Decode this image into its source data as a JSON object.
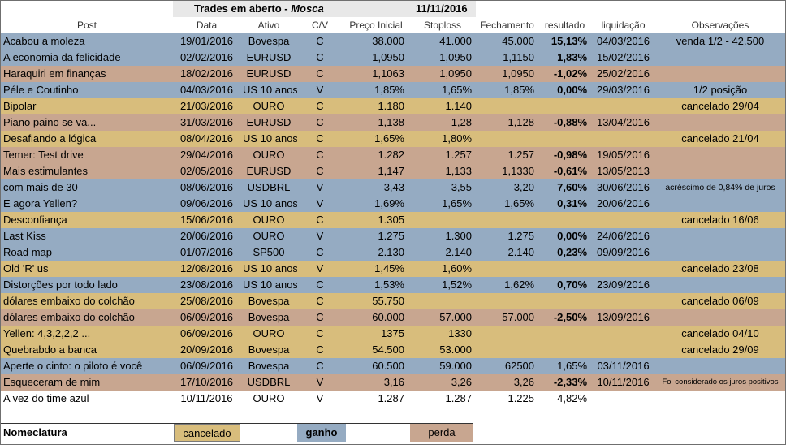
{
  "title": {
    "text": "Trades em aberto - ",
    "strategy": "Mosca",
    "date": "11/11/2016"
  },
  "headers": {
    "post": "Post",
    "data": "Data",
    "ativo": "Ativo",
    "cv": "C/V",
    "preco": "Preço Inicial",
    "stop": "Stoploss",
    "fech": "Fechamento",
    "res": "resultado",
    "liq": "liquidação",
    "obs": "Observações"
  },
  "colors": {
    "ganho": "#95abc2",
    "cancelado": "#d8bd7c",
    "perda": "#c8a690"
  },
  "rows": [
    {
      "status": "blue",
      "post": "Acabou a moleza",
      "data": "19/01/2016",
      "ativo": "Bovespa",
      "cv": "C",
      "preco": "38.000",
      "stop": "41.000",
      "fech": "45.000",
      "res": "15,13%",
      "liq": "04/03/2016",
      "obs": "venda 1/2 - 42.500"
    },
    {
      "status": "blue",
      "post": "A economia da felicidade",
      "data": "02/02/2016",
      "ativo": "EURUSD",
      "cv": "C",
      "preco": "1,0950",
      "stop": "1,0950",
      "fech": "1,1150",
      "res": "1,83%",
      "liq": "15/02/2016",
      "obs": ""
    },
    {
      "status": "pink",
      "post": "Haraquiri em finanças",
      "data": "18/02/2016",
      "ativo": "EURUSD",
      "cv": "C",
      "preco": "1,1063",
      "stop": "1,0950",
      "fech": "1,0950",
      "res": "-1,02%",
      "liq": "25/02/2016",
      "obs": ""
    },
    {
      "status": "blue",
      "post": "Péle e Coutinho",
      "data": "04/03/2016",
      "ativo": "US 10 anos",
      "cv": "V",
      "preco": "1,85%",
      "stop": "1,65%",
      "fech": "1,85%",
      "res": "0,00%",
      "liq": "29/03/2016",
      "obs": "1/2 posição"
    },
    {
      "status": "tan",
      "post": "Bipolar",
      "data": "21/03/2016",
      "ativo": "OURO",
      "cv": "C",
      "preco": "1.180",
      "stop": "1.140",
      "fech": "",
      "res": "",
      "liq": "",
      "obs": "cancelado 29/04"
    },
    {
      "status": "pink",
      "post": "Piano paino se va...",
      "data": "31/03/2016",
      "ativo": "EURUSD",
      "cv": "C",
      "preco": "1,138",
      "stop": "1,28",
      "fech": "1,128",
      "res": "-0,88%",
      "liq": "13/04/2016",
      "obs": ""
    },
    {
      "status": "tan",
      "post": "Desafiando a lógica",
      "data": "08/04/2016",
      "ativo": "US 10 anos",
      "cv": "C",
      "preco": "1,65%",
      "stop": "1,80%",
      "fech": "",
      "res": "",
      "liq": "",
      "obs": "cancelado 21/04"
    },
    {
      "status": "pink",
      "post": "Temer: Test drive",
      "data": "29/04/2016",
      "ativo": "OURO",
      "cv": "C",
      "preco": "1.282",
      "stop": "1.257",
      "fech": "1.257",
      "res": "-0,98%",
      "liq": "19/05/2016",
      "obs": ""
    },
    {
      "status": "pink",
      "post": "Mais estimulantes",
      "data": "02/05/2016",
      "ativo": "EURUSD",
      "cv": "C",
      "preco": "1,147",
      "stop": "1,133",
      "fech": "1,1330",
      "res": "-0,61%",
      "liq": "13/05/2013",
      "obs": ""
    },
    {
      "status": "blue",
      "post": "com mais de 30",
      "data": "08/06/2016",
      "ativo": "USDBRL",
      "cv": "V",
      "preco": "3,43",
      "stop": "3,55",
      "fech": "3,20",
      "res": "7,60%",
      "liq": "30/06/2016",
      "obs": "acréscimo de 0,84% de juros",
      "obsClass": "small"
    },
    {
      "status": "blue",
      "post": "E agora Yellen?",
      "data": "09/06/2016",
      "ativo": "US 10 anos",
      "cv": "V",
      "preco": "1,69%",
      "stop": "1,65%",
      "fech": "1,65%",
      "res": "0,31%",
      "liq": "20/06/2016",
      "obs": ""
    },
    {
      "status": "tan",
      "post": "Desconfiança",
      "data": "15/06/2016",
      "ativo": "OURO",
      "cv": "C",
      "preco": "1.305",
      "stop": "",
      "fech": "",
      "res": "",
      "liq": "",
      "obs": "cancelado 16/06"
    },
    {
      "status": "blue",
      "post": "Last Kiss",
      "data": "20/06/2016",
      "ativo": "OURO",
      "cv": "V",
      "preco": "1.275",
      "stop": "1.300",
      "fech": "1.275",
      "res": "0,00%",
      "liq": "24/06/2016",
      "obs": ""
    },
    {
      "status": "blue",
      "post": "Road map",
      "data": "01/07/2016",
      "ativo": "SP500",
      "cv": "C",
      "preco": "2.130",
      "stop": "2.140",
      "fech": "2.140",
      "res": "0,23%",
      "liq": "09/09/2016",
      "obs": ""
    },
    {
      "status": "tan",
      "post": "Old 'R' us",
      "data": "12/08/2016",
      "ativo": "US 10 anos",
      "cv": "V",
      "preco": "1,45%",
      "stop": "1,60%",
      "fech": "",
      "res": "",
      "liq": "",
      "obs": "cancelado 23/08"
    },
    {
      "status": "blue",
      "post": "Distorções por todo lado",
      "data": "23/08/2016",
      "ativo": "US 10 anos",
      "cv": "C",
      "preco": "1,53%",
      "stop": "1,52%",
      "fech": "1,62%",
      "res": "0,70%",
      "liq": "23/09/2016",
      "obs": ""
    },
    {
      "status": "tan",
      "post": "dólares embaixo do colchão",
      "data": "25/08/2016",
      "ativo": "Bovespa",
      "cv": "C",
      "preco": "55.750",
      "stop": "",
      "fech": "",
      "res": "",
      "liq": "",
      "obs": "cancelado 06/09"
    },
    {
      "status": "pink",
      "post": "dólares embaixo do colchão",
      "data": "06/09/2016",
      "ativo": "Bovespa",
      "cv": "C",
      "preco": "60.000",
      "stop": "57.000",
      "fech": "57.000",
      "res": "-2,50%",
      "liq": "13/09/2016",
      "obs": ""
    },
    {
      "status": "tan",
      "post": "Yellen: 4,3,2,2,2 ...",
      "data": "06/09/2016",
      "ativo": "OURO",
      "cv": "C",
      "preco": "1375",
      "stop": "1330",
      "fech": "",
      "res": "",
      "liq": "",
      "obs": "cancelado 04/10"
    },
    {
      "status": "tan",
      "post": "Quebrabdo a banca",
      "data": "20/09/2016",
      "ativo": "Bovespa",
      "cv": "C",
      "preco": "54.500",
      "stop": "53.000",
      "fech": "",
      "res": "",
      "liq": "",
      "obs": "cancelado 29/09"
    },
    {
      "status": "blue",
      "post": "Aperte o cinto: o piloto é você",
      "data": "06/09/2016",
      "ativo": "Bovespa",
      "cv": "C",
      "preco": "60.500",
      "stop": "59.000",
      "fech": "62500",
      "res": "1,65%",
      "liq": "03/11/2016",
      "obs": "",
      "resPlain": true
    },
    {
      "status": "pink",
      "post": "Esqueceram de mim",
      "data": "17/10/2016",
      "ativo": "USDBRL",
      "cv": "V",
      "preco": "3,16",
      "stop": "3,26",
      "fech": "3,26",
      "res": "-2,33%",
      "liq": "10/11/2016",
      "obs": "Foi considerado os juros positivos",
      "obsClass": "xsmall"
    },
    {
      "status": "white",
      "post": "A vez do time azul",
      "data": "10/11/2016",
      "ativo": "OURO",
      "cv": "V",
      "preco": "1.287",
      "stop": "1.287",
      "fech": "1.225",
      "res": "4,82%",
      "liq": "",
      "obs": ""
    }
  ],
  "legend": {
    "label": "Nomeclatura",
    "cancelado": "cancelado",
    "ganho": "ganho",
    "perda": "perda"
  }
}
